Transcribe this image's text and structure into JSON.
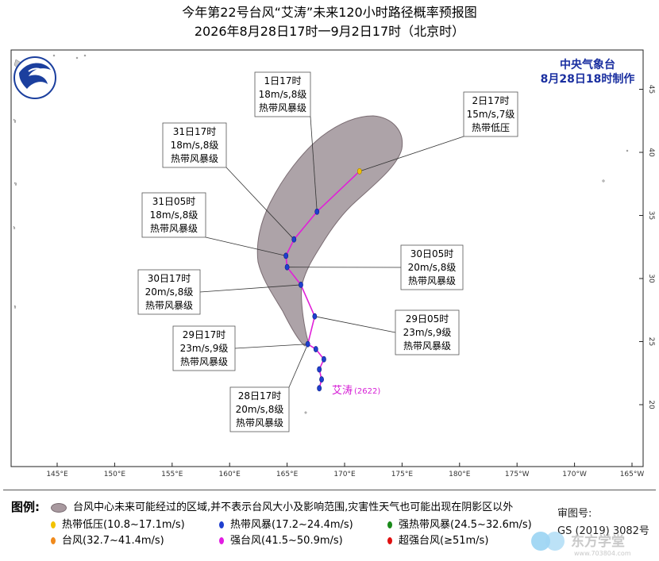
{
  "title": "今年第22号台风“艾涛”未来120小时路径概率预报图",
  "subtitle": "2026年8月28日17时一9月2日17时（北京时）",
  "agency": "中央气象台",
  "issue_time": "8月28日18时制作",
  "typhoon_label": "艾涛",
  "typhoon_code": "(2622)",
  "lon_labels": [
    "145°E",
    "150°E",
    "155°E",
    "160°E",
    "165°E",
    "170°E",
    "175°E",
    "180°E",
    "175°W",
    "170°W",
    "165°W"
  ],
  "lat_labels": [
    "20",
    "25",
    "30",
    "35",
    "40",
    "45"
  ],
  "track_points": [
    {
      "lon": 167.8,
      "lat": 21.3
    },
    {
      "lon": 168.0,
      "lat": 22.0
    },
    {
      "lon": 167.8,
      "lat": 22.8
    },
    {
      "lon": 168.2,
      "lat": 23.6
    },
    {
      "lon": 167.5,
      "lat": 24.4
    },
    {
      "lon": 166.8,
      "lat": 24.8
    },
    {
      "lon": 167.4,
      "lat": 27.0
    },
    {
      "lon": 166.2,
      "lat": 29.5
    },
    {
      "lon": 165.0,
      "lat": 30.9
    },
    {
      "lon": 164.9,
      "lat": 31.8
    },
    {
      "lon": 165.6,
      "lat": 33.1
    },
    {
      "lon": 167.6,
      "lat": 35.3
    },
    {
      "lon": 171.3,
      "lat": 38.5
    }
  ],
  "callouts": [
    {
      "time": "1日17时",
      "wind": "18m/s,8级",
      "level": "热带风暴级"
    },
    {
      "time": "2日17时",
      "wind": "15m/s,7级",
      "level": "热带低压"
    },
    {
      "time": "31日17时",
      "wind": "18m/s,8级",
      "level": "热带风暴级"
    },
    {
      "time": "31日05时",
      "wind": "18m/s,8级",
      "level": "热带风暴级"
    },
    {
      "time": "30日05时",
      "wind": "20m/s,8级",
      "level": "热带风暴级"
    },
    {
      "time": "30日17时",
      "wind": "20m/s,8级",
      "level": "热带风暴级"
    },
    {
      "time": "29日05时",
      "wind": "23m/s,9级",
      "level": "热带风暴级"
    },
    {
      "time": "29日17时",
      "wind": "23m/s,9级",
      "level": "热带风暴级"
    },
    {
      "time": "28日17时",
      "wind": "20m/s,8级",
      "level": "热带风暴级"
    }
  ],
  "legend": {
    "title": "图例:",
    "cone": "台风中心未来可能经过的区域,并不表示台风大小及影响范围,灾害性天气也可能出现在阴影区以外",
    "items": [
      {
        "label": "热带低压(10.8~17.1m/s)",
        "color": "#f2c200"
      },
      {
        "label": "热带风暴(17.2~24.4m/s)",
        "color": "#1f3fcf"
      },
      {
        "label": "强热带风暴(24.5~32.6m/s)",
        "color": "#1a8a1a"
      },
      {
        "label": "台风(32.7~41.4m/s)",
        "color": "#f08a1c"
      },
      {
        "label": "强台风(41.5~50.9m/s)",
        "color": "#e21ce2"
      },
      {
        "label": "超强台风(≥51m/s)",
        "color": "#e01010"
      }
    ]
  },
  "review_label": "审图号:",
  "review_number": "GS (2019) 3082号",
  "watermark": "东方学堂",
  "watermark_url": "www.703804.com",
  "colors": {
    "track": "#e020d8",
    "cone": "#8e7f86",
    "point": "#1f3fcf",
    "end_point": "#f2c200",
    "agency": "#1a2fa0"
  }
}
